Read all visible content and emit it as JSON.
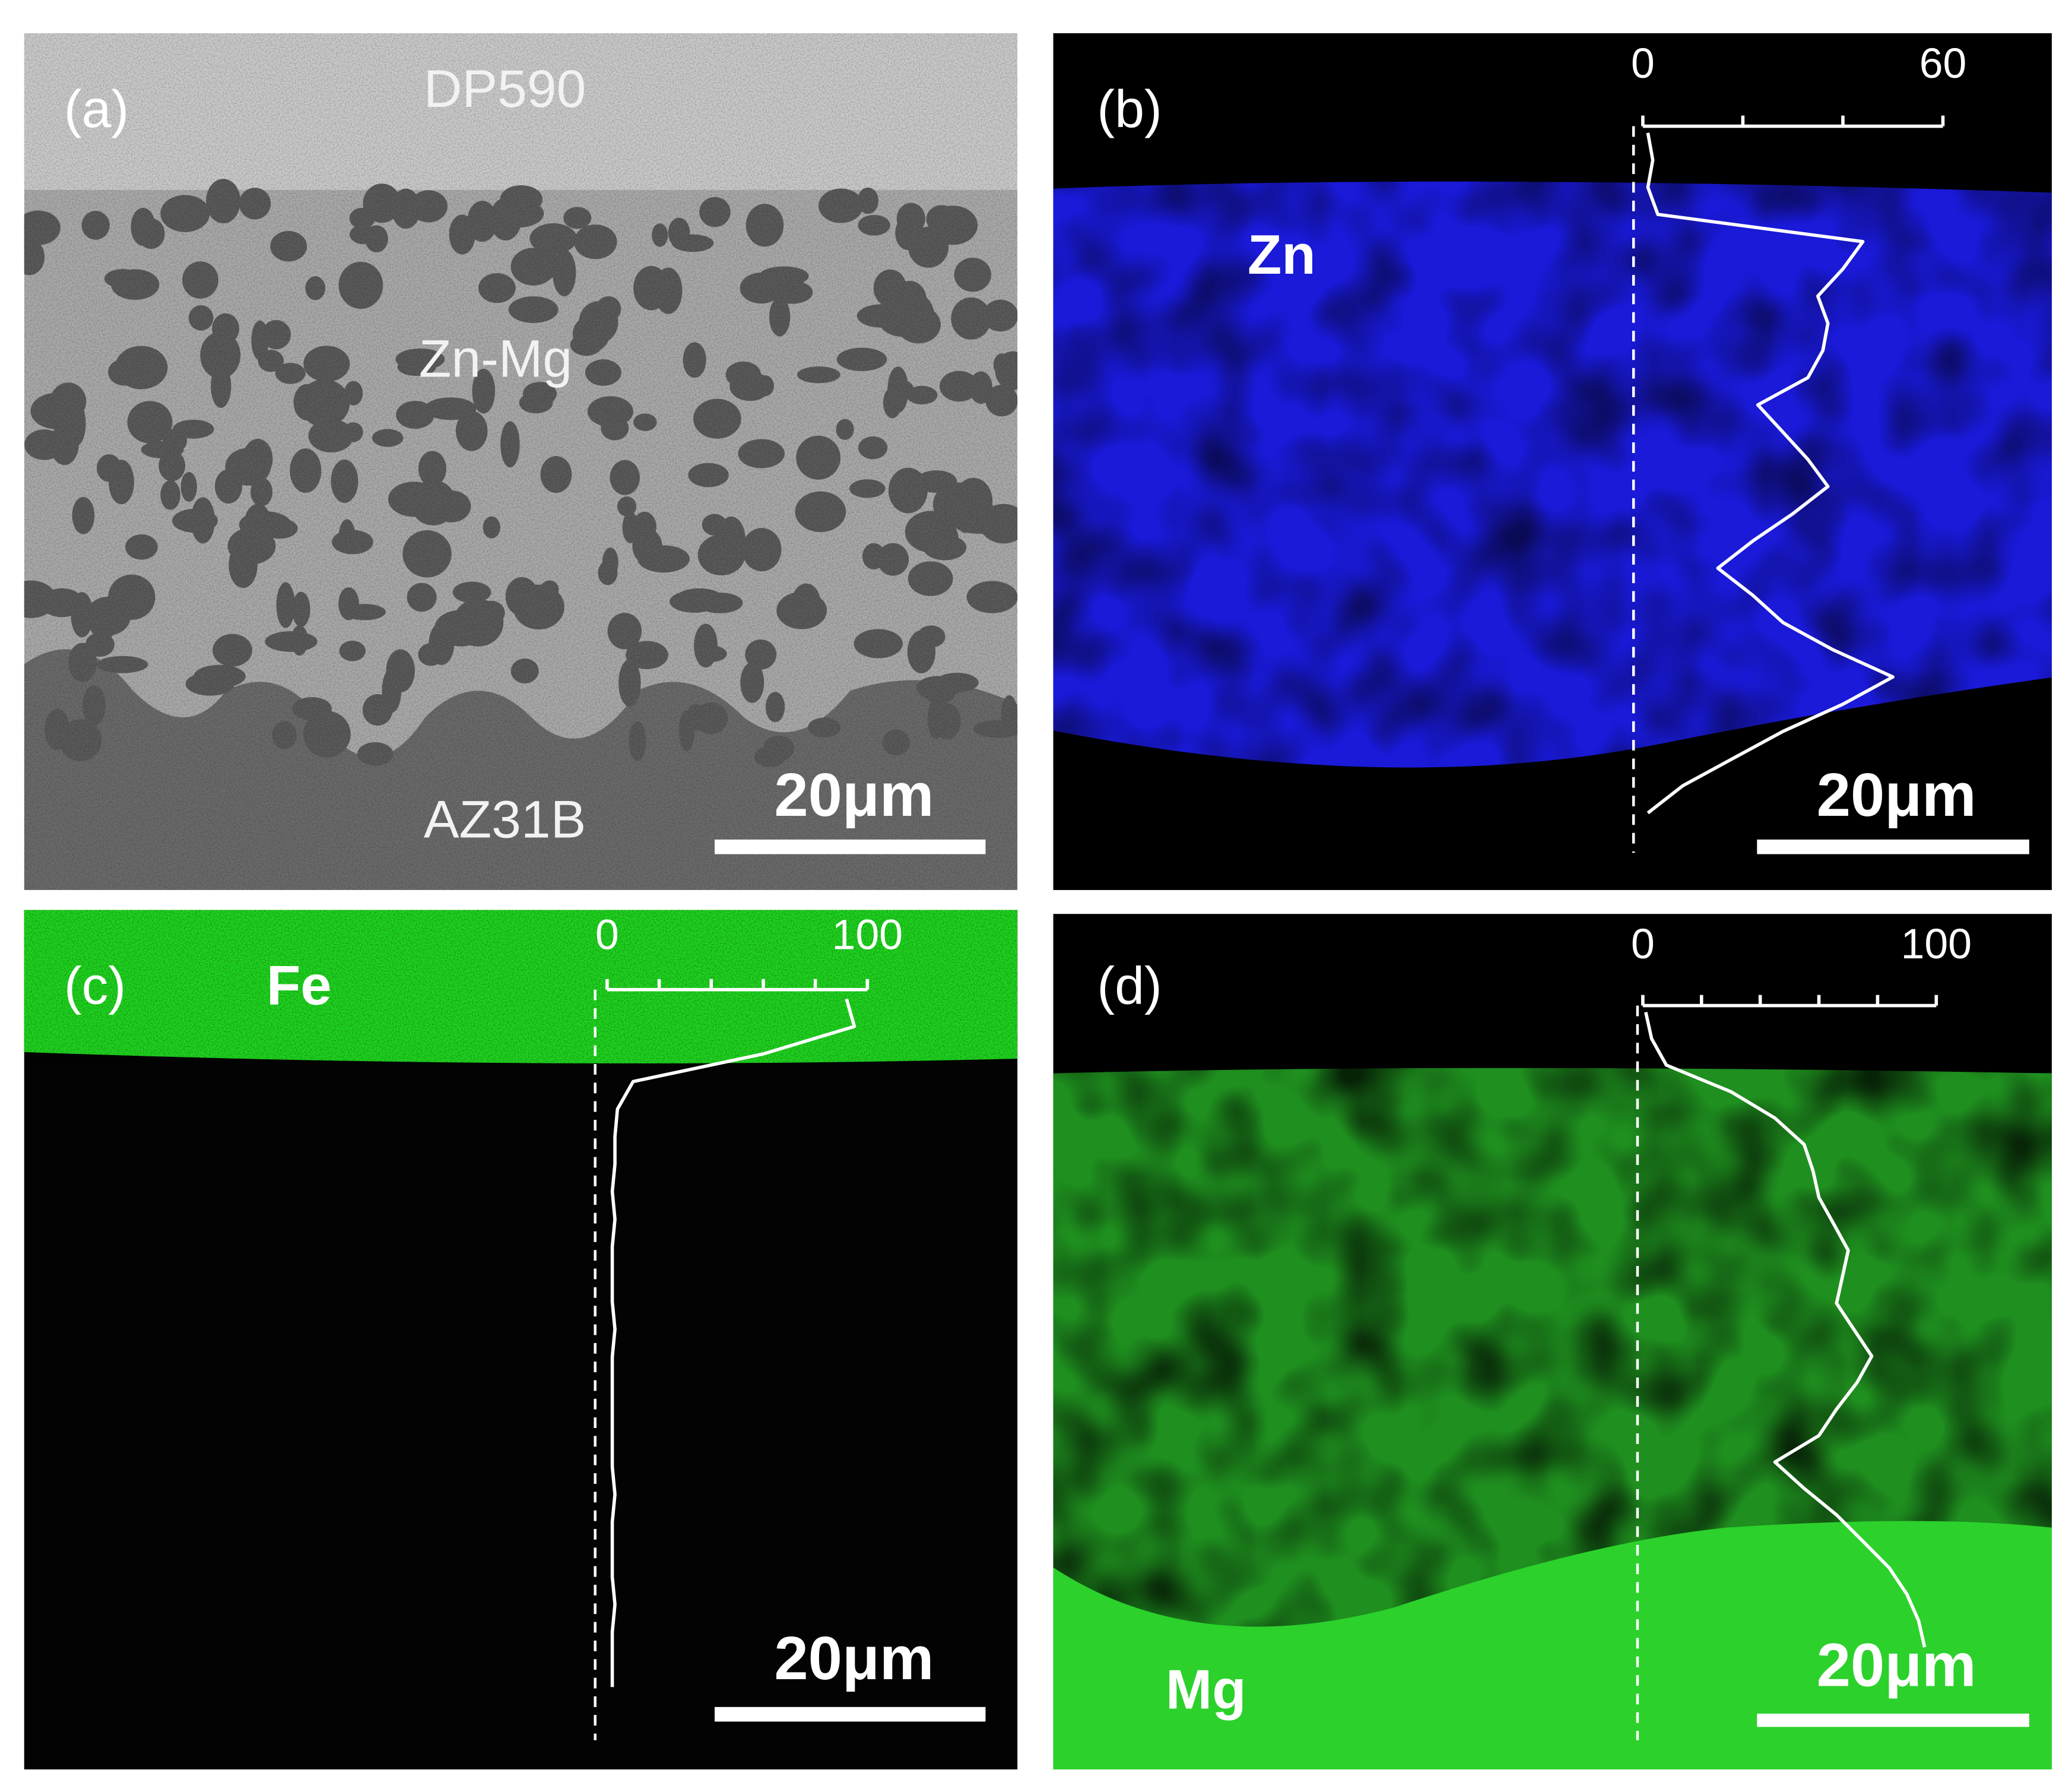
{
  "panels": [
    {
      "label": "(a)",
      "annotations": [
        "DP590",
        "Zn-Mg",
        "AZ31B"
      ],
      "scale_bar": "20μm"
    },
    {
      "label": "(b)",
      "element": "Zn",
      "scale_bar": "20μm",
      "profile": {
        "xlim": [
          0,
          60
        ],
        "xticks": [
          0,
          20,
          40,
          60
        ],
        "values": [
          1,
          2,
          1,
          3,
          44,
          40,
          35,
          37,
          36,
          33,
          23,
          28,
          33,
          37,
          30,
          22,
          15,
          22,
          28,
          38,
          50,
          40,
          28,
          18,
          8,
          1
        ]
      }
    },
    {
      "label": "(c)",
      "element": "Fe",
      "scale_bar": "20μm",
      "profile": {
        "xlim": [
          0,
          100
        ],
        "xticks": [
          0,
          20,
          40,
          60,
          80,
          100
        ],
        "values": [
          92,
          95,
          60,
          10,
          4,
          3,
          3,
          2,
          3,
          2,
          2,
          2,
          3,
          2,
          2,
          2,
          2,
          2,
          3,
          2,
          2,
          2,
          3,
          2,
          2,
          2
        ]
      }
    },
    {
      "label": "(d)",
      "element": "Mg",
      "scale_bar": "20μm",
      "profile": {
        "xlim": [
          0,
          100
        ],
        "xticks": [
          0,
          20,
          40,
          60,
          80,
          100
        ],
        "values": [
          1,
          3,
          8,
          30,
          45,
          55,
          58,
          60,
          65,
          70,
          68,
          66,
          72,
          78,
          73,
          66,
          60,
          45,
          55,
          66,
          75,
          84,
          90,
          94,
          96
        ]
      }
    }
  ]
}
